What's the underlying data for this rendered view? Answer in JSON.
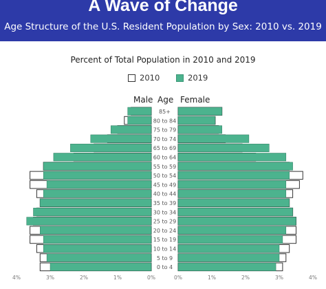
{
  "header": {
    "title": "A Wave of Change",
    "subtitle": "Age Structure of the U.S. Resident Population by Sex: 2010 vs. 2019"
  },
  "colors": {
    "header_bg": "#2d3aa8",
    "bar_2019": "#4cb38e",
    "bar_2010": "#ffffff"
  },
  "chart_data": {
    "type": "bar",
    "orientation": "horizontal",
    "layout": "population-pyramid",
    "title": "Percent of Total Population in 2010 and 2019",
    "legend": [
      "2010",
      "2019"
    ],
    "legend_position": "top-center",
    "left_label": "Male",
    "center_label": "Age",
    "right_label": "Female",
    "categories": [
      "85+",
      "80 to 84",
      "75 to 79",
      "70 to 74",
      "65 to 69",
      "60 to 64",
      "55 to 59",
      "50 to 54",
      "45 to 49",
      "40 to 44",
      "35 to 39",
      "30 to 34",
      "25 to 29",
      "20 to 24",
      "15 to 19",
      "10 to 14",
      "5 to 9",
      "0 to 4"
    ],
    "series": [
      {
        "name": "2010",
        "side": "male",
        "values": [
          0.6,
          0.8,
          1.0,
          1.3,
          1.7,
          2.3,
          3.2,
          3.6,
          3.6,
          3.4,
          3.3,
          3.4,
          3.5,
          3.6,
          3.6,
          3.4,
          3.3,
          3.3
        ]
      },
      {
        "name": "2019",
        "side": "male",
        "values": [
          0.7,
          0.7,
          1.2,
          1.8,
          2.4,
          2.9,
          3.2,
          3.2,
          3.1,
          3.2,
          3.3,
          3.5,
          3.7,
          3.3,
          3.2,
          3.2,
          3.1,
          3.0
        ]
      },
      {
        "name": "2010",
        "side": "female",
        "values": [
          1.3,
          1.1,
          1.2,
          1.4,
          1.9,
          2.3,
          3.3,
          3.7,
          3.6,
          3.4,
          3.3,
          3.4,
          3.5,
          3.5,
          3.5,
          3.3,
          3.2,
          3.1
        ]
      },
      {
        "name": "2019",
        "side": "female",
        "values": [
          1.3,
          1.1,
          1.3,
          2.1,
          2.7,
          3.2,
          3.4,
          3.3,
          3.2,
          3.2,
          3.3,
          3.4,
          3.5,
          3.2,
          3.1,
          3.0,
          3.0,
          2.9
        ]
      }
    ],
    "male_ticks": [
      "4%",
      "3%",
      "2%",
      "1%",
      "0%"
    ],
    "female_ticks": [
      "0%",
      "1%",
      "2%",
      "3%",
      "4%"
    ],
    "xlim": [
      0,
      4
    ],
    "grid": false
  }
}
